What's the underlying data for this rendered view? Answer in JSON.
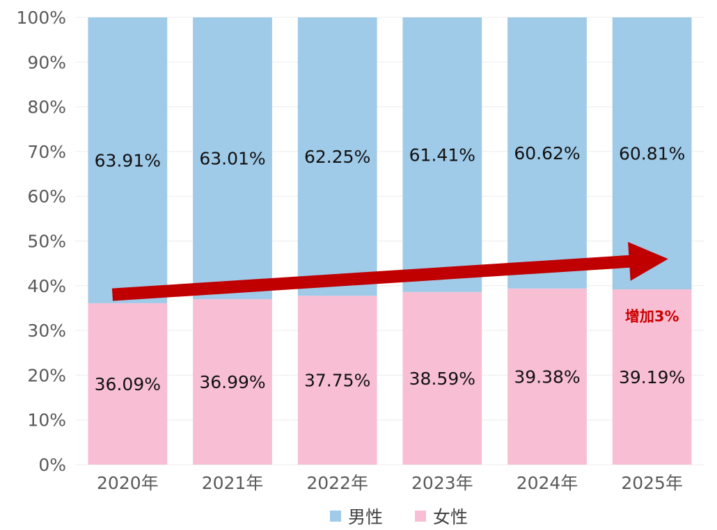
{
  "chart_data": {
    "type": "bar",
    "stacked": true,
    "categories": [
      "2020年",
      "2021年",
      "2022年",
      "2023年",
      "2024年",
      "2025年"
    ],
    "series": [
      {
        "name": "女性",
        "values": [
          36.09,
          36.99,
          37.75,
          38.59,
          39.38,
          39.19
        ],
        "labels": [
          "36.09%",
          "36.99%",
          "37.75%",
          "38.59%",
          "39.38%",
          "39.19%"
        ],
        "color": "#f8bfd4"
      },
      {
        "name": "男性",
        "values": [
          63.91,
          63.01,
          62.25,
          61.41,
          60.62,
          60.81
        ],
        "labels": [
          "63.91%",
          "63.01%",
          "62.25%",
          "61.41%",
          "60.62%",
          "60.81%"
        ],
        "color": "#9fcae8"
      }
    ],
    "ylim": [
      0,
      100
    ],
    "y_ticks": [
      "0%",
      "10%",
      "20%",
      "30%",
      "40%",
      "50%",
      "60%",
      "70%",
      "80%",
      "90%",
      "100%"
    ],
    "grid": true,
    "legend": {
      "position": "bottom",
      "items": [
        "男性",
        "女性"
      ]
    },
    "annotation": {
      "text": "增加3%",
      "color": "#cc0000",
      "category": "2025年"
    },
    "arrow": {
      "color": "#c00000",
      "from": {
        "x": "2020年",
        "y": 38
      },
      "to": {
        "x": "2025年",
        "y": 46
      }
    }
  }
}
